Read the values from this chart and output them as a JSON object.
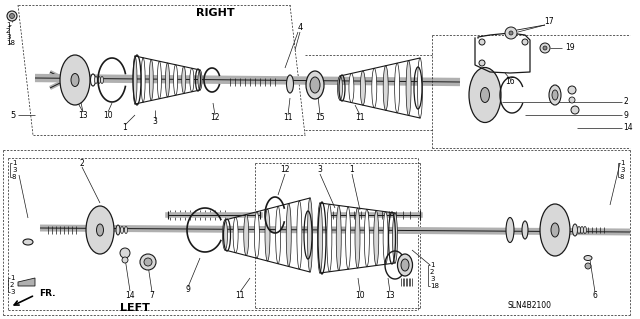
{
  "bg_color": "#ffffff",
  "line_color": "#1a1a1a",
  "gray_light": "#d8d8d8",
  "gray_mid": "#b0b0b0",
  "gray_dark": "#888888",
  "title_right": "RIGHT",
  "title_left": "LEFT",
  "fr_label": "FR.",
  "part_code": "SLN4B2100",
  "figsize": [
    6.4,
    3.19
  ],
  "dpi": 100
}
